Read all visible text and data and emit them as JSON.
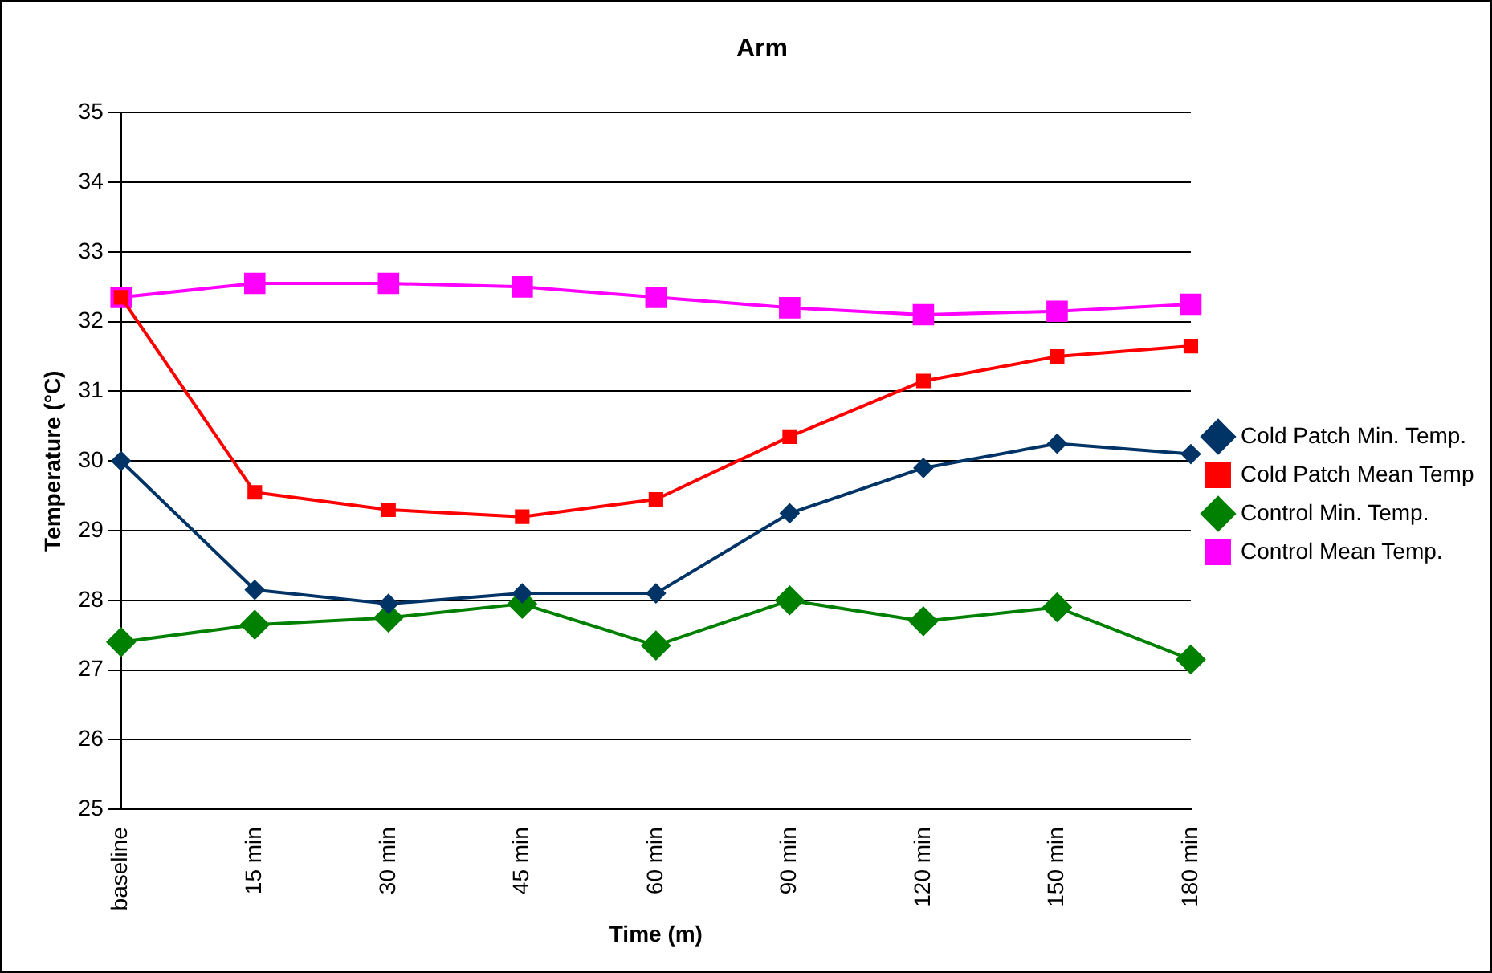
{
  "chart_data": {
    "type": "line",
    "title": "Arm",
    "xlabel": "Time (m)",
    "ylabel": "Temperature (°C)",
    "categories": [
      "baseline",
      "15 min",
      "30 min",
      "45 min",
      "60 min",
      "90 min",
      "120 min",
      "150 min",
      "180 min"
    ],
    "ylim": [
      25,
      35
    ],
    "yticks": [
      25,
      26,
      27,
      28,
      29,
      30,
      31,
      32,
      33,
      34,
      35
    ],
    "grid": "y",
    "legend": "right",
    "line_style": "solid",
    "series": [
      {
        "name": "Cold Patch Min. Temp.",
        "color": "#003366",
        "marker": "diamond",
        "values": [
          30.0,
          28.15,
          27.95,
          28.1,
          28.1,
          29.25,
          29.9,
          30.25,
          30.1
        ]
      },
      {
        "name": "Cold Patch Mean Temp",
        "color": "#ff0000",
        "marker": "square",
        "values": [
          32.35,
          29.55,
          29.3,
          29.2,
          29.45,
          30.35,
          31.15,
          31.5,
          31.65
        ]
      },
      {
        "name": "Control Min. Temp.",
        "color": "#008000",
        "marker": "diamond",
        "values": [
          27.4,
          27.65,
          27.75,
          27.95,
          27.35,
          28.0,
          27.7,
          27.9,
          27.15
        ]
      },
      {
        "name": "Control Mean Temp.",
        "color": "#ff00ff",
        "marker": "square",
        "values": [
          32.35,
          32.55,
          32.55,
          32.5,
          32.35,
          32.2,
          32.1,
          32.15,
          32.25
        ]
      }
    ]
  }
}
